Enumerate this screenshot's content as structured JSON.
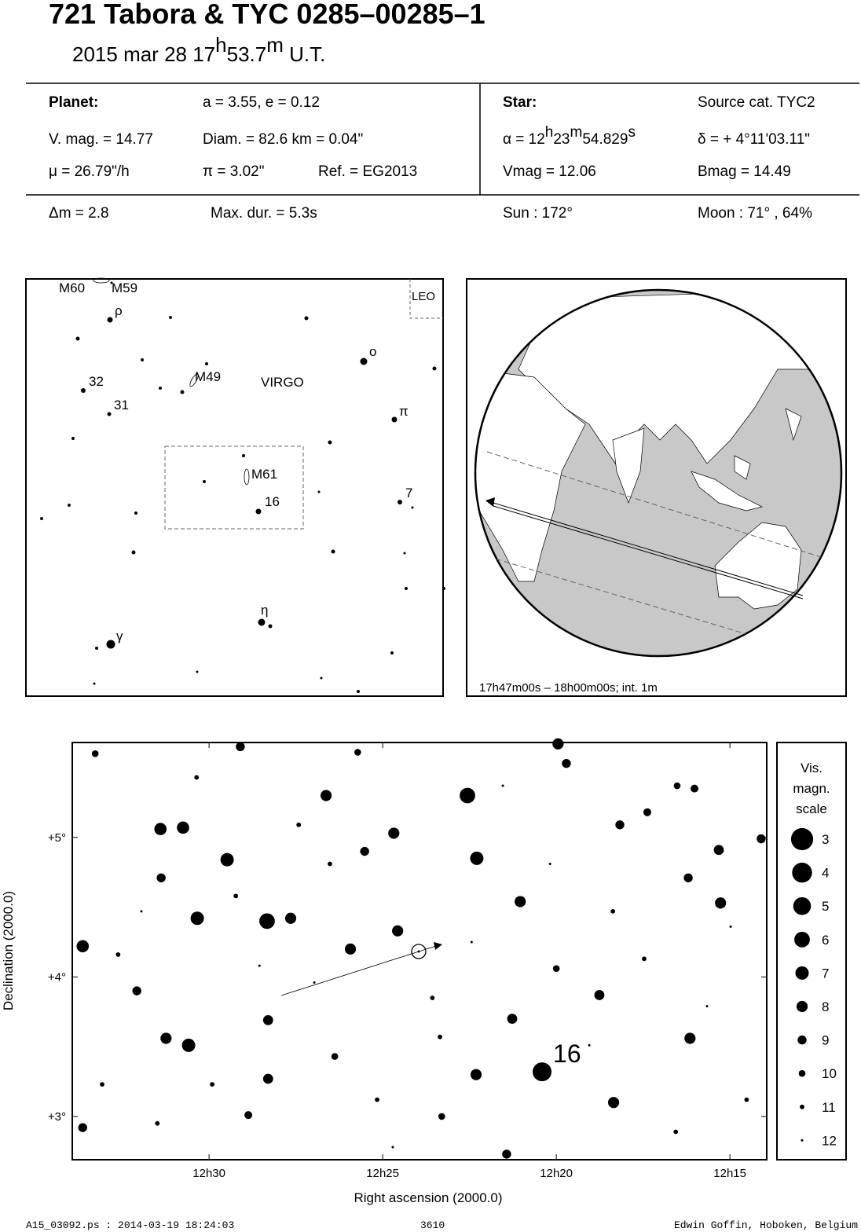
{
  "header": {
    "title": "721 Tabora  &  TYC 0285–00285–1",
    "date": [
      "2015 mar 28  17",
      "h",
      "53.7",
      "m",
      " U.T."
    ]
  },
  "info": {
    "planet_label": "Planet:",
    "orbit": "a = 3.55, e = 0.12",
    "vmag": "V. mag. = 14.77",
    "diam": "Diam. = 82.6 km = 0.04\"",
    "mu": "μ =  26.79\"/h",
    "parallax": "π =  3.02\"",
    "ref": "Ref. = EG2013",
    "star_label": "Star:",
    "source": "Source cat.  TYC2",
    "alpha": [
      "α = 12",
      "h",
      "23",
      "m",
      "54.829",
      "s"
    ],
    "delta": "δ = + 4°11'03.11\"",
    "star_vmag": "Vmag = 12.06",
    "star_bmag": "Bmag = 14.49",
    "dm": "Δm = 2.8",
    "maxdur": "Max. dur. = 5.3s",
    "sun": "Sun : 172°",
    "moon": "Moon :  71° , 64%"
  },
  "finder": {
    "labels": [
      "M60",
      "M59",
      "ρ",
      "32",
      "M49",
      "VIRGO",
      "31",
      "π",
      "ο",
      "M61",
      "16",
      "7",
      "η",
      "γ",
      "LEO"
    ]
  },
  "globe": {
    "caption": "17h47m00s – 18h00m00s; int.  1m"
  },
  "chart_data": {
    "type": "scatter",
    "xlabel": "Right ascension (2000.0)",
    "ylabel": "Declination (2000.0)",
    "xlim": [
      33.94,
      13.94
    ],
    "ylim": [
      2.69,
      5.68
    ],
    "xticks": [
      {
        "value": 30,
        "label": "12h30"
      },
      {
        "value": 25,
        "label": "12h25"
      },
      {
        "value": 20,
        "label": "12h20"
      },
      {
        "value": 15,
        "label": "12h15"
      }
    ],
    "yticks": [
      {
        "value": 5,
        "label": "+5°"
      },
      {
        "value": 4,
        "label": "+4°"
      },
      {
        "value": 3,
        "label": "+3°"
      }
    ],
    "color": "#000000",
    "x": [
      20.41,
      22.56,
      22.29,
      29.48,
      28.33,
      30.34,
      31.4,
      30.75,
      33.64,
      26.63,
      24.68,
      25.93,
      24.57,
      27.65,
      31.24,
      30.59,
      22.31,
      18.35,
      16.15,
      15.32,
      15.27,
      19.95,
      21.04,
      21.27,
      18.76,
      28.3,
      28.3,
      32.08,
      31.38,
      25.52,
      29.1,
      33.28,
      14.1,
      16.2,
      18.17,
      21.43,
      33.64,
      28.87,
      26.38,
      23.3,
      17.38,
      16.02,
      19.71,
      16.52,
      20.0,
      25.72,
      32.62,
      29.23,
      26.97,
      23.57,
      25.16,
      17.47,
      15.66,
      14.52,
      33.08,
      20.18,
      27.42,
      21.54,
      30.36,
      31.95,
      23.35,
      19.05,
      16.56,
      14.98,
      26.52,
      28.55,
      31.49,
      24.71,
      18.37,
      22.44,
      29.91
    ],
    "y": [
      3.32,
      5.3,
      4.85,
      4.84,
      4.4,
      4.42,
      5.06,
      5.07,
      4.22,
      5.3,
      5.03,
      4.2,
      4.33,
      4.42,
      3.56,
      3.51,
      3.3,
      3.1,
      3.56,
      4.91,
      4.53,
      5.67,
      4.54,
      3.7,
      3.87,
      3.69,
      3.27,
      3.9,
      4.71,
      4.9,
      5.65,
      5.6,
      4.99,
      4.71,
      5.09,
      2.73,
      2.92,
      3.01,
      3.43,
      3.0,
      5.18,
      5.35,
      5.53,
      5.37,
      4.06,
      5.61,
      4.16,
      4.58,
      3.96,
      3.85,
      3.12,
      4.13,
      3.79,
      3.12,
      3.23,
      4.81,
      5.09,
      5.37,
      5.43,
      4.47,
      3.57,
      3.51,
      2.89,
      4.36,
      4.81,
      4.08,
      2.95,
      2.78,
      4.47,
      4.25,
      3.23
    ],
    "mag": [
      4.5,
      6,
      7,
      7,
      6,
      7,
      7.5,
      7.5,
      7.5,
      8,
      8,
      8,
      8,
      8,
      8,
      7,
      8,
      8,
      8,
      8.5,
      8,
      8,
      8,
      8.5,
      8.5,
      8.5,
      8.5,
      9,
      9,
      9,
      9,
      10,
      9,
      9,
      9,
      9,
      9,
      9.5,
      10,
      10,
      9.5,
      9.5,
      9,
      10,
      10,
      10,
      11,
      11,
      12,
      11,
      11,
      11,
      12,
      11,
      11,
      12,
      11,
      12,
      11,
      12,
      11,
      12,
      11,
      12,
      11,
      12,
      11,
      12,
      11,
      12,
      11
    ],
    "annotation": "16",
    "legend_title": [
      "Vis.",
      "magn.",
      "scale"
    ],
    "legend_values": [
      3,
      4,
      5,
      6,
      7,
      8,
      9,
      10,
      11,
      12
    ]
  },
  "footer": {
    "file": "A15_03092.ps : 2014-03-19 18:24:03",
    "number": "3610",
    "author": "Edwin Goffin, Hoboken, Belgium"
  }
}
